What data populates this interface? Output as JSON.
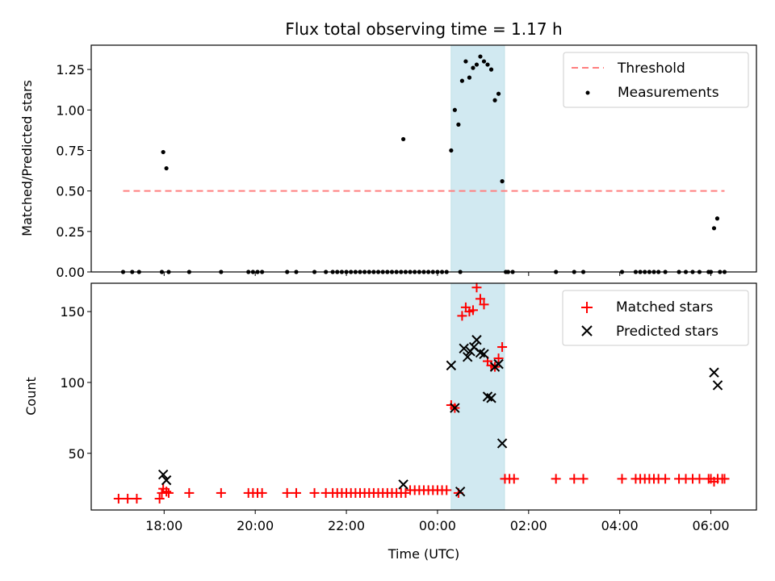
{
  "figure": {
    "title": "Flux total observing time = 1.17 h",
    "xlabel": "Time (UTC)",
    "xticks": [
      {
        "v": 18,
        "label": "18:00"
      },
      {
        "v": 20,
        "label": "20:00"
      },
      {
        "v": 22,
        "label": "22:00"
      },
      {
        "v": 24,
        "label": "00:00"
      },
      {
        "v": 26,
        "label": "02:00"
      },
      {
        "v": 28,
        "label": "04:00"
      },
      {
        "v": 30,
        "label": "06:00"
      }
    ],
    "xlim": [
      16.4,
      31.0
    ],
    "shaded_span": {
      "x0": 24.3,
      "x1": 25.47,
      "color": "#add8e6"
    }
  },
  "chart_data": [
    {
      "type": "scatter",
      "ylabel": "Matched/Predicted stars",
      "ylim": [
        0,
        1.4
      ],
      "yticks": [
        {
          "v": 0,
          "label": "0.00"
        },
        {
          "v": 0.25,
          "label": "0.25"
        },
        {
          "v": 0.5,
          "label": "0.50"
        },
        {
          "v": 0.75,
          "label": "0.75"
        },
        {
          "v": 1.0,
          "label": "1.00"
        },
        {
          "v": 1.25,
          "label": "1.25"
        }
      ],
      "legend": {
        "position": "top-right",
        "entries": [
          "Threshold",
          "Measurements"
        ]
      },
      "series": [
        {
          "name": "Threshold",
          "kind": "dashed-line",
          "color": "#ff7f7f",
          "x": [
            17.1,
            30.3
          ],
          "y": [
            0.5,
            0.5
          ]
        },
        {
          "name": "Measurements",
          "kind": "dot",
          "color": "#000000",
          "x": [
            17.98,
            18.05,
            23.25,
            24.3,
            24.38,
            24.46,
            24.54,
            24.62,
            24.7,
            24.78,
            24.86,
            24.94,
            25.02,
            25.1,
            25.18,
            25.26,
            25.34,
            25.42,
            25.5,
            30.07,
            30.14,
            17.1,
            17.3,
            17.45,
            17.95,
            18.1,
            18.55,
            19.25,
            19.85,
            19.95,
            20.05,
            20.15,
            20.7,
            20.9,
            21.3,
            21.55,
            21.7,
            21.8,
            21.9,
            22.0,
            22.1,
            22.2,
            22.3,
            22.4,
            22.5,
            22.6,
            22.7,
            22.8,
            22.9,
            23.0,
            23.1,
            23.2,
            23.3,
            23.4,
            23.5,
            23.6,
            23.7,
            23.8,
            23.9,
            24.0,
            24.1,
            24.2,
            24.5,
            25.55,
            25.65,
            26.6,
            27.0,
            27.2,
            28.05,
            28.35,
            28.45,
            28.55,
            28.65,
            28.75,
            28.85,
            29.0,
            29.3,
            29.45,
            29.6,
            29.75,
            29.95,
            30.0,
            30.2,
            30.3
          ],
          "y": [
            0.74,
            0.64,
            0.82,
            0.75,
            1.0,
            0.91,
            1.18,
            1.3,
            1.2,
            1.26,
            1.28,
            1.33,
            1.3,
            1.28,
            1.25,
            1.06,
            1.1,
            0.56,
            0.0,
            0.27,
            0.33,
            0,
            0,
            0,
            0,
            0,
            0,
            0,
            0,
            0,
            0,
            0,
            0,
            0,
            0,
            0,
            0,
            0,
            0,
            0,
            0,
            0,
            0,
            0,
            0,
            0,
            0,
            0,
            0,
            0,
            0,
            0,
            0,
            0,
            0,
            0,
            0,
            0,
            0,
            0,
            0,
            0,
            0,
            0,
            0,
            0,
            0,
            0,
            0,
            0,
            0,
            0,
            0,
            0,
            0,
            0,
            0,
            0,
            0,
            0,
            0,
            0,
            0,
            0
          ]
        }
      ]
    },
    {
      "type": "scatter",
      "ylabel": "Count",
      "ylim": [
        10,
        170
      ],
      "yticks": [
        {
          "v": 50,
          "label": "50"
        },
        {
          "v": 100,
          "label": "100"
        },
        {
          "v": 150,
          "label": "150"
        }
      ],
      "legend": {
        "position": "top-right",
        "entries": [
          "Matched stars",
          "Predicted stars"
        ]
      },
      "series": [
        {
          "name": "Matched stars",
          "kind": "plus",
          "color": "#ff0000",
          "x": [
            17.98,
            18.05,
            24.3,
            24.38,
            24.46,
            24.54,
            24.62,
            24.7,
            24.78,
            24.86,
            24.94,
            25.02,
            25.1,
            25.18,
            25.26,
            25.34,
            25.42,
            30.07,
            17.0,
            17.2,
            17.4,
            17.9,
            17.95,
            18.1,
            18.55,
            19.25,
            19.85,
            19.95,
            20.05,
            20.15,
            20.7,
            20.9,
            21.3,
            21.55,
            21.7,
            21.8,
            21.9,
            22.0,
            22.1,
            22.2,
            22.3,
            22.4,
            22.5,
            22.6,
            22.7,
            22.8,
            22.9,
            23.0,
            23.1,
            23.2,
            23.3,
            23.4,
            23.5,
            23.6,
            23.7,
            23.8,
            23.9,
            24.0,
            24.1,
            24.2,
            25.48,
            25.58,
            25.68,
            26.6,
            27.0,
            27.2,
            28.05,
            28.35,
            28.45,
            28.55,
            28.65,
            28.75,
            28.85,
            29.0,
            29.3,
            29.45,
            29.6,
            29.75,
            29.95,
            30.0,
            30.15,
            30.25,
            30.3
          ],
          "y": [
            25,
            23,
            84,
            82,
            22,
            147,
            153,
            150,
            151,
            167,
            159,
            155,
            115,
            112,
            111,
            117,
            125,
            30,
            18,
            18,
            18,
            18,
            22,
            22,
            22,
            22,
            22,
            22,
            22,
            22,
            22,
            22,
            22,
            22,
            22,
            22,
            22,
            22,
            22,
            22,
            22,
            22,
            22,
            22,
            22,
            22,
            22,
            22,
            22,
            22,
            22,
            24,
            24,
            24,
            24,
            24,
            24,
            24,
            24,
            24,
            32,
            32,
            32,
            32,
            32,
            32,
            32,
            32,
            32,
            32,
            32,
            32,
            32,
            32,
            32,
            32,
            32,
            32,
            32,
            32,
            32,
            32,
            32
          ]
        },
        {
          "name": "Predicted stars",
          "kind": "x",
          "color": "#000000",
          "x": [
            17.98,
            18.05,
            23.25,
            24.3,
            24.38,
            24.5,
            24.58,
            24.66,
            24.72,
            24.8,
            24.86,
            24.94,
            25.02,
            25.1,
            25.18,
            25.26,
            25.34,
            25.42,
            30.07,
            30.15
          ],
          "y": [
            35,
            31,
            28,
            112,
            82,
            23,
            124,
            118,
            122,
            125,
            130,
            121,
            120,
            90,
            89,
            111,
            113,
            57,
            107,
            98
          ]
        }
      ]
    }
  ]
}
